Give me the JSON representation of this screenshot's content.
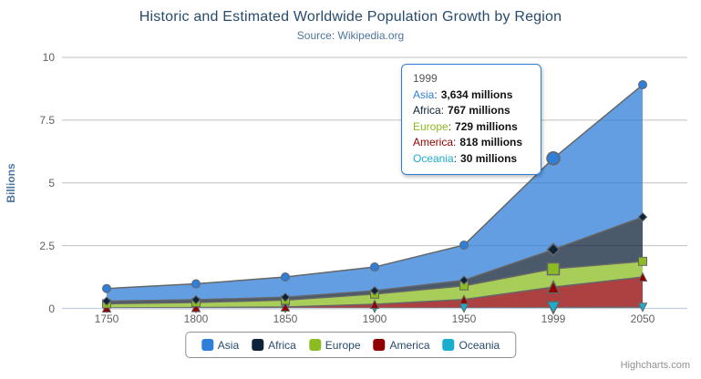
{
  "chart": {
    "title": "Historic and Estimated Worldwide Population Growth by Region",
    "subtitle": "Source: Wikipedia.org",
    "credits": "Highcharts.com"
  },
  "icons": {
    "export_menu": "hamburger-icon"
  },
  "y_axis": {
    "title": "Billions",
    "ticks": [
      {
        "label": "10",
        "value": 10
      },
      {
        "label": "7.5",
        "value": 7.5
      },
      {
        "label": "5",
        "value": 5
      },
      {
        "label": "2.5",
        "value": 2.5
      },
      {
        "label": "0",
        "value": 0
      }
    ]
  },
  "x_axis": {
    "categories": [
      "1750",
      "1800",
      "1850",
      "1900",
      "1950",
      "1999",
      "2050"
    ]
  },
  "legend": {
    "items": [
      {
        "label": "Asia",
        "color": "#2f7ed8"
      },
      {
        "label": "Africa",
        "color": "#0d233a"
      },
      {
        "label": "Europe",
        "color": "#8bbc21"
      },
      {
        "label": "America",
        "color": "#910000"
      },
      {
        "label": "Oceania",
        "color": "#1aadce"
      }
    ]
  },
  "tooltip": {
    "header": "1999",
    "separator": ":",
    "border_color": "#2f7ed8",
    "rows": [
      {
        "name": "Asia",
        "value": "3,634 millions",
        "color": "#2f7ed8"
      },
      {
        "name": "Africa",
        "value": "767 millions",
        "color": "#0d233a"
      },
      {
        "name": "Europe",
        "value": "729 millions",
        "color": "#8bbc21"
      },
      {
        "name": "America",
        "value": "818 millions",
        "color": "#910000"
      },
      {
        "name": "Oceania",
        "value": "30 millions",
        "color": "#1aadce"
      }
    ]
  },
  "chart_data": {
    "type": "area",
    "stacking": "normal",
    "title": "Historic and Estimated Worldwide Population Growth by Region",
    "subtitle": "Source: Wikipedia.org",
    "ylabel": "Billions",
    "ylim": [
      0,
      10
    ],
    "unit": "millions",
    "grid": true,
    "legend_position": "bottom",
    "hover_category_index": 5,
    "categories": [
      "1750",
      "1800",
      "1850",
      "1900",
      "1950",
      "1999",
      "2050"
    ],
    "series": [
      {
        "name": "Asia",
        "color": "#2f7ed8",
        "marker": "circle",
        "values_millions": [
          502,
          635,
          809,
          947,
          1402,
          3634,
          5268
        ]
      },
      {
        "name": "Africa",
        "color": "#0d233a",
        "marker": "diamond",
        "values_millions": [
          106,
          107,
          111,
          133,
          221,
          767,
          1766
        ]
      },
      {
        "name": "Europe",
        "color": "#8bbc21",
        "marker": "square",
        "values_millions": [
          163,
          203,
          276,
          408,
          547,
          729,
          628
        ]
      },
      {
        "name": "America",
        "color": "#910000",
        "marker": "triangle",
        "values_millions": [
          18,
          31,
          54,
          156,
          339,
          818,
          1201
        ]
      },
      {
        "name": "Oceania",
        "color": "#1aadce",
        "marker": "triangle-down",
        "values_millions": [
          2,
          2,
          2,
          6,
          13,
          30,
          46
        ]
      }
    ]
  },
  "colors": {
    "title_text": "#274b6d",
    "subtitle_text": "#4d759e",
    "axis_label_text": "#606060",
    "legend_text": "#274b6d",
    "grid_line": "#c0c0c0",
    "axis_line": "#c0d0e0",
    "series_outline": "#666666",
    "credits_text": "#909090",
    "export_icon": "#666666"
  }
}
